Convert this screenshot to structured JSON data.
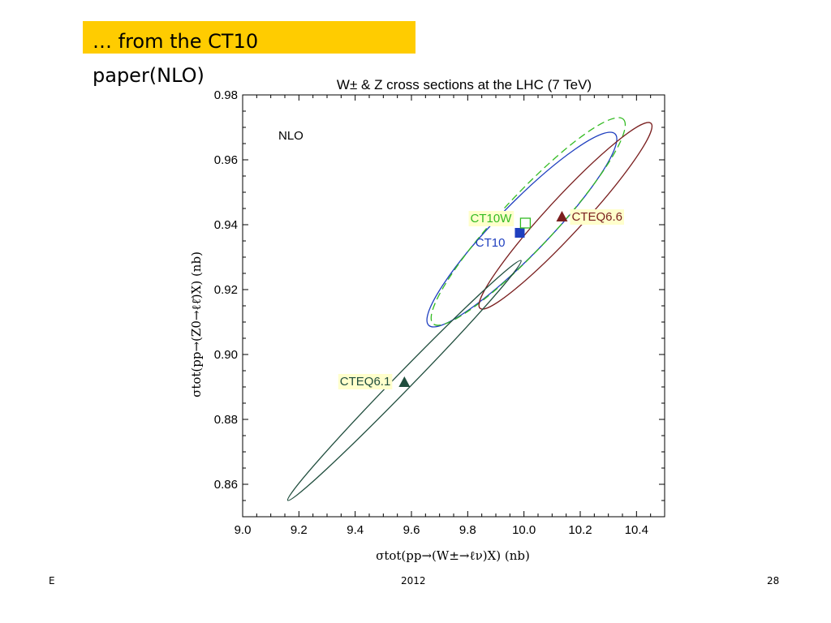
{
  "slide": {
    "title_line1": "… from the CT10",
    "title_line2": "paper(NLO)",
    "banner_color": "#ffcc00",
    "footer_left": "E",
    "footer_center": "2012",
    "footer_right": "28"
  },
  "chart_data": {
    "type": "scatter",
    "title": "W± & Z cross sections at the LHC (7 TeV)",
    "xlabel": "σtot(pp→(W±→ℓν)X) (nb)",
    "ylabel": "σtot(pp→(Z0→ℓℓ̄)X) (nb)",
    "xlim": [
      9.0,
      10.5
    ],
    "ylim": [
      0.85,
      0.98
    ],
    "xticks": [
      "9.0",
      "9.2",
      "9.4",
      "9.6",
      "9.8",
      "10.0",
      "10.2",
      "10.4"
    ],
    "yticks": [
      "0.86",
      "0.88",
      "0.90",
      "0.92",
      "0.94",
      "0.96",
      "0.98"
    ],
    "annotation": "NLO",
    "grid": false,
    "series": [
      {
        "name": "CT10",
        "color": "#1f3fbf",
        "marker": "filled-square",
        "x": 9.985,
        "y": 0.9375,
        "ellipse_extent": {
          "x": [
            9.655,
            10.33
          ],
          "y": 0.9085,
          "y_top": 0.9685
        },
        "dashed": false
      },
      {
        "name": "CT10W",
        "color": "#33bb22",
        "marker": "open-square",
        "x": 10.005,
        "y": 0.9405,
        "ellipse_extent": {
          "x": [
            9.67,
            10.36
          ],
          "y": 0.909,
          "y_top": 0.973
        },
        "dashed": true
      },
      {
        "name": "CTEQ6.6",
        "color": "#7a1f1f",
        "marker": "filled-triangle",
        "x": 10.135,
        "y": 0.9425,
        "ellipse_extent": {
          "x": [
            9.84,
            10.455
          ],
          "y": 0.914,
          "y_top": 0.9715
        },
        "dashed": false
      },
      {
        "name": "CTEQ6.1",
        "color": "#1f4d3d",
        "marker": "filled-triangle",
        "x": 9.575,
        "y": 0.8915,
        "ellipse_extent": {
          "x": [
            9.16,
            9.99
          ],
          "y": 0.855,
          "y_top": 0.929
        },
        "dashed": false
      }
    ]
  }
}
